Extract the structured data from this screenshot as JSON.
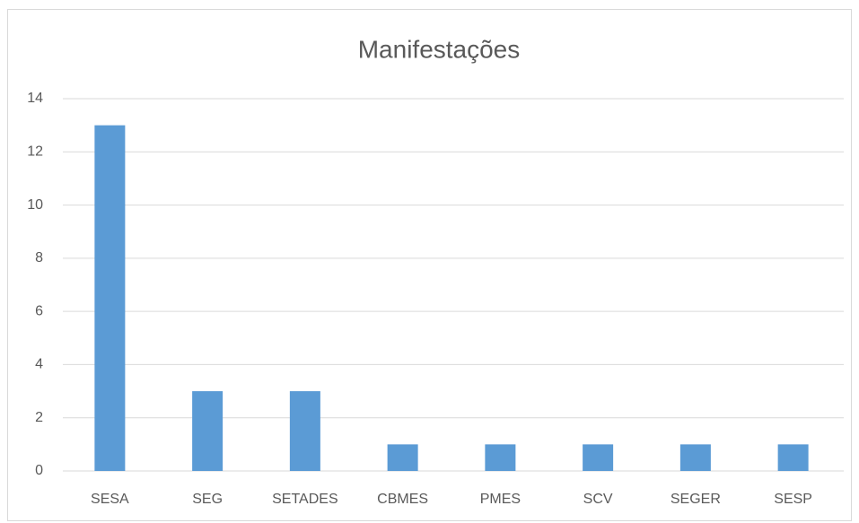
{
  "chart_data": {
    "type": "bar",
    "title": "Manifestações",
    "categories": [
      "SESA",
      "SEG",
      "SETADES",
      "CBMES",
      "PMES",
      "SCV",
      "SEGER",
      "SESP"
    ],
    "values": [
      13,
      3,
      3,
      1,
      1,
      1,
      1,
      1
    ],
    "color": "#5b9bd5",
    "ylim": [
      0,
      14
    ],
    "yticks": [
      0,
      2,
      4,
      6,
      8,
      10,
      12,
      14
    ],
    "grid": true
  }
}
